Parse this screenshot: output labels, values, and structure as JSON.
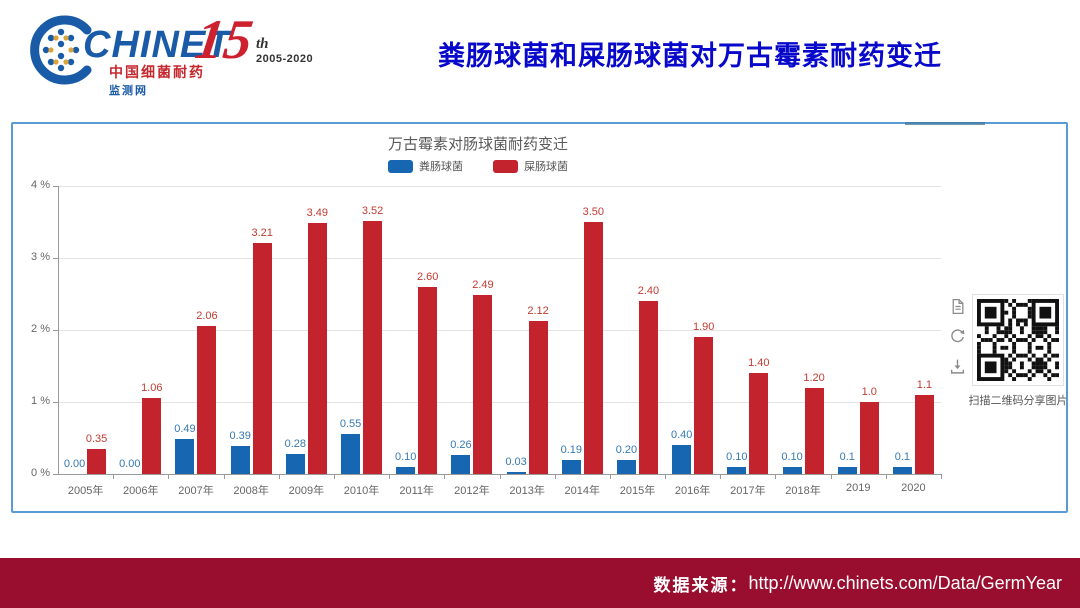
{
  "header": {
    "logo": {
      "brand": "CHINET",
      "line1": "中国细菌耐药",
      "line2": "监测网"
    },
    "anniversary": {
      "numeral": "15",
      "suffix": "th",
      "range": "2005-2020"
    },
    "title": "粪肠球菌和屎肠球菌对万古霉素耐药变迁"
  },
  "chart_data": {
    "type": "bar",
    "title": "万古霉素对肠球菌耐药变迁",
    "categories": [
      "2005年",
      "2006年",
      "2007年",
      "2008年",
      "2009年",
      "2010年",
      "2011年",
      "2012年",
      "2013年",
      "2014年",
      "2015年",
      "2016年",
      "2017年",
      "2018年",
      "2019",
      "2020"
    ],
    "series": [
      {
        "name": "粪肠球菌",
        "color": "#1666b1",
        "label_color": "#3579b1",
        "values": [
          0.0,
          0.0,
          0.49,
          0.39,
          0.28,
          0.55,
          0.1,
          0.26,
          0.03,
          0.19,
          0.2,
          0.4,
          0.1,
          0.1,
          0.1,
          0.1
        ],
        "labels": [
          "0.00",
          "0.00",
          "0.49",
          "0.39",
          "0.28",
          "0.55",
          "0.10",
          "0.26",
          "0.03",
          "0.19",
          "0.20",
          "0.40",
          "0.10",
          "0.10",
          "0.1",
          "0.1"
        ]
      },
      {
        "name": "屎肠球菌",
        "color": "#c2232c",
        "label_color": "#c23b31",
        "values": [
          0.35,
          1.06,
          2.06,
          3.21,
          3.49,
          3.52,
          2.6,
          2.49,
          2.12,
          3.5,
          2.4,
          1.9,
          1.4,
          1.2,
          1.0,
          1.1
        ],
        "labels": [
          "0.35",
          "1.06",
          "2.06",
          "3.21",
          "3.49",
          "3.52",
          "2.60",
          "2.49",
          "2.12",
          "3.50",
          "2.40",
          "1.90",
          "1.40",
          "1.20",
          "1.0",
          "1.1"
        ]
      }
    ],
    "y_ticks": [
      "4 %",
      "3 %",
      "2 %",
      "1 %",
      "0 %"
    ],
    "ylim": [
      0,
      4
    ],
    "grid": true,
    "legend_position": "top"
  },
  "side_panel": {
    "qr_caption": "扫描二维码分享图片"
  },
  "footer": {
    "label": "数据来源：",
    "url": "http://www.chinets.com/Data/GermYear"
  }
}
